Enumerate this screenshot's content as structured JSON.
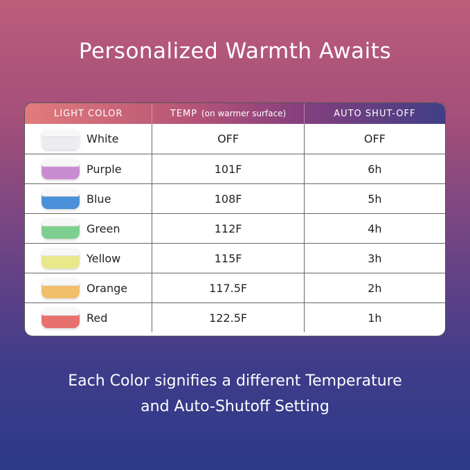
{
  "title": "Personalized Warmth Awaits",
  "table": {
    "headers": {
      "color": "LIGHT COLOR",
      "temp": "TEMP",
      "temp_note": "(on warmer surface)",
      "shutoff": "AUTO SHUT-OFF"
    },
    "rows": [
      {
        "color": "White",
        "temp": "OFF",
        "shutoff": "OFF",
        "swatch": "#ececf0"
      },
      {
        "color": "Purple",
        "temp": "101F",
        "shutoff": "6h",
        "swatch": "#c98bd0"
      },
      {
        "color": "Blue",
        "temp": "108F",
        "shutoff": "5h",
        "swatch": "#4a90d8"
      },
      {
        "color": "Green",
        "temp": "112F",
        "shutoff": "4h",
        "swatch": "#7ccf8e"
      },
      {
        "color": "Yellow",
        "temp": "115F",
        "shutoff": "3h",
        "swatch": "#e8e98a"
      },
      {
        "color": "Orange",
        "temp": "117.5F",
        "shutoff": "2h",
        "swatch": "#f1be6c"
      },
      {
        "color": "Red",
        "temp": "122.5F",
        "shutoff": "1h",
        "swatch": "#e8706e"
      }
    ]
  },
  "footer": {
    "line1": "Each Color signifies a different Temperature",
    "line2": "and Auto-Shutoff Setting"
  }
}
